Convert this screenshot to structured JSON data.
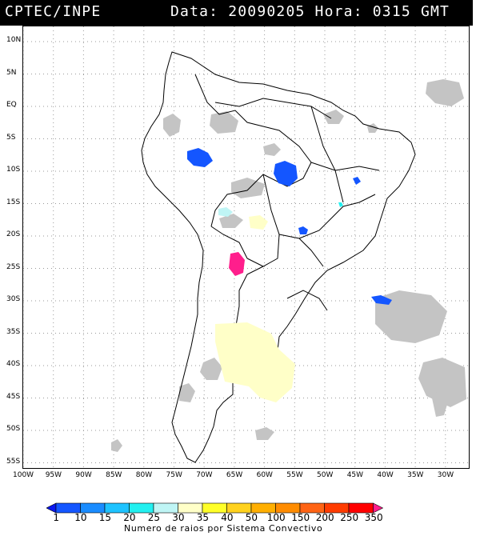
{
  "header": {
    "source": "CPTEC/INPE",
    "datetime": "Data: 20090205 Hora: 0315 GMT"
  },
  "lat_labels": [
    "10N",
    "5N",
    "EQ",
    "5S",
    "10S",
    "15S",
    "20S",
    "25S",
    "30S",
    "35S",
    "40S",
    "45S",
    "50S",
    "55S"
  ],
  "lon_labels": [
    "100W",
    "95W",
    "90W",
    "85W",
    "80W",
    "75W",
    "70W",
    "65W",
    "60W",
    "55W",
    "50W",
    "45W",
    "40W",
    "35W",
    "30W"
  ],
  "legend": {
    "title": "Numero de raios por Sistema Convectivo",
    "ticks": [
      "1",
      "10",
      "15",
      "20",
      "25",
      "30",
      "35",
      "40",
      "50",
      "100",
      "150",
      "200",
      "250",
      "350"
    ],
    "colors": [
      "#0b18f0",
      "#1456ff",
      "#1a8cff",
      "#1ec3ff",
      "#22f0f0",
      "#bff5f5",
      "#ffffc8",
      "#ffff28",
      "#ffd21e",
      "#ffaf00",
      "#ff8c00",
      "#ff6414",
      "#ff3c00",
      "#ff0000",
      "#ff1e8c"
    ]
  },
  "colors": {
    "cloud": "#c4c4c4",
    "map_lines": "#000000",
    "header_bg": "#000000"
  }
}
